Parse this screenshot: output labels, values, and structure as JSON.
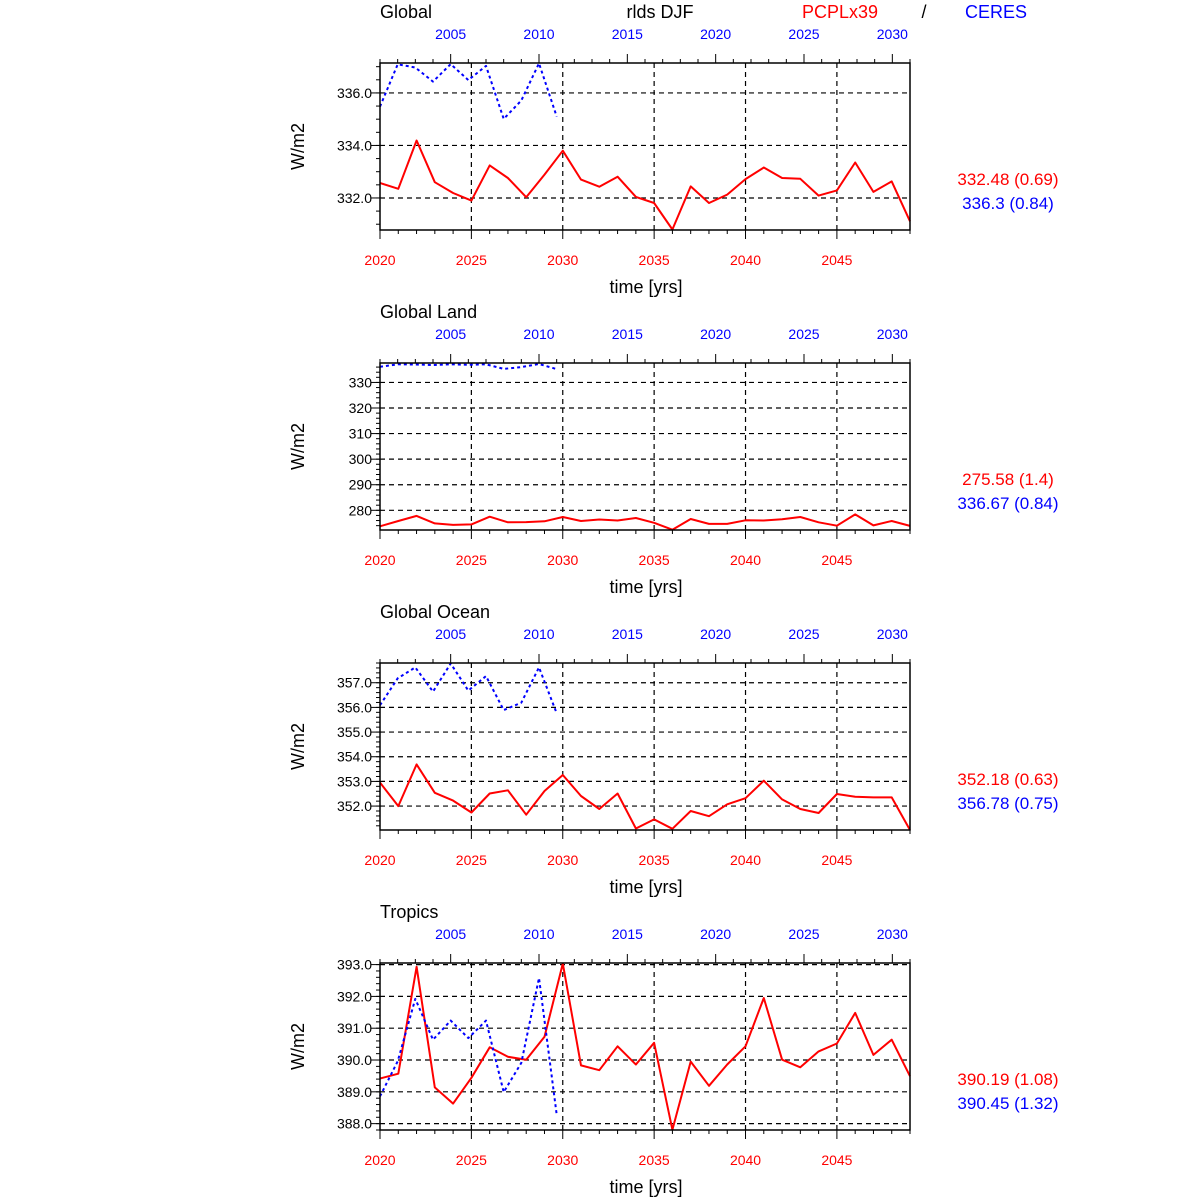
{
  "header": {
    "variable": "rlds DJF",
    "model_label": "PCPLx39",
    "separator": "/",
    "obs_label": "CERES",
    "model_color": "#ff0000",
    "obs_color": "#0000ff"
  },
  "chart_data": [
    {
      "type": "line",
      "title": "Global",
      "xlabel": "time [yrs]",
      "ylabel": "W/m2",
      "xlim_bottom": [
        2020,
        2049
      ],
      "xlim_top": [
        2001,
        2031
      ],
      "xticks_bottom": [
        2020,
        2025,
        2030,
        2035,
        2040,
        2045
      ],
      "xticks_top": [
        2005,
        2010,
        2015,
        2020,
        2025,
        2030
      ],
      "ylim": [
        330.78,
        337.14
      ],
      "yticks": [
        332,
        334,
        336
      ],
      "ytick_labels": [
        "332.0",
        "334.0",
        "336.0"
      ],
      "yminor_step": 0.5,
      "grid": true,
      "series": [
        {
          "name": "PCPLx39",
          "x_start": 2020,
          "color": "#ff0000",
          "style": "solid",
          "values": [
            332.57,
            332.35,
            334.19,
            332.6,
            332.19,
            331.9,
            333.24,
            332.76,
            332.03,
            332.89,
            333.8,
            332.7,
            332.43,
            332.81,
            332.04,
            331.81,
            330.8,
            332.44,
            331.81,
            332.13,
            332.72,
            333.16,
            332.76,
            332.73,
            332.09,
            332.29,
            333.35,
            332.23,
            332.63,
            331.11
          ]
        },
        {
          "name": "CERES",
          "x_start": 2001,
          "color": "#0000ff",
          "style": "dashed",
          "values": [
            335.48,
            337.09,
            336.97,
            336.43,
            337.1,
            336.49,
            337.03,
            335.01,
            335.71,
            337.13,
            335.1
          ]
        }
      ],
      "stats": [
        "332.48 (0.69)",
        "336.3 (0.84)"
      ]
    },
    {
      "type": "line",
      "title": "Global Land",
      "xlabel": "time [yrs]",
      "ylabel": "W/m2",
      "xlim_bottom": [
        2020,
        2049
      ],
      "xlim_top": [
        2001,
        2031
      ],
      "xticks_bottom": [
        2020,
        2025,
        2030,
        2035,
        2040,
        2045
      ],
      "xticks_top": [
        2005,
        2010,
        2015,
        2020,
        2025,
        2030
      ],
      "ylim": [
        272.3,
        337.6
      ],
      "yticks": [
        280,
        290,
        300,
        310,
        320,
        330
      ],
      "ytick_labels": [
        "280",
        "290",
        "300",
        "310",
        "320",
        "330"
      ],
      "yminor_step": 2,
      "grid": true,
      "series": [
        {
          "name": "PCPLx39",
          "x_start": 2020,
          "color": "#ff0000",
          "style": "solid",
          "values": [
            273.75,
            275.8,
            277.8,
            274.9,
            274.3,
            274.5,
            277.5,
            275.3,
            275.4,
            275.7,
            277.4,
            275.8,
            276.4,
            276.0,
            277.0,
            275.1,
            272.4,
            276.6,
            274.7,
            274.7,
            276.1,
            276.0,
            276.5,
            277.4,
            275.3,
            274.0,
            278.4,
            274.1,
            275.8,
            273.9
          ]
        },
        {
          "name": "CERES",
          "x_start": 2001,
          "color": "#0000ff",
          "style": "dashed",
          "values": [
            336.1,
            337.1,
            337.0,
            336.8,
            337.1,
            336.9,
            337.1,
            335.3,
            336.0,
            337.2,
            335.2
          ]
        }
      ],
      "stats": [
        "275.58 (1.4)",
        "336.67 (0.84)"
      ]
    },
    {
      "type": "line",
      "title": "Global Ocean",
      "xlabel": "time [yrs]",
      "ylabel": "W/m2",
      "xlim_bottom": [
        2020,
        2049
      ],
      "xlim_top": [
        2001,
        2031
      ],
      "xticks_bottom": [
        2020,
        2025,
        2030,
        2035,
        2040,
        2045
      ],
      "xticks_top": [
        2005,
        2010,
        2015,
        2020,
        2025,
        2030
      ],
      "ylim": [
        351.03,
        357.8
      ],
      "yticks": [
        352,
        353,
        354,
        355,
        356,
        357
      ],
      "ytick_labels": [
        "352.0",
        "353.0",
        "354.0",
        "355.0",
        "356.0",
        "357.0"
      ],
      "yminor_step": 0.2,
      "grid": true,
      "series": [
        {
          "name": "PCPLx39",
          "x_start": 2020,
          "color": "#ff0000",
          "style": "solid",
          "values": [
            352.95,
            352.0,
            353.69,
            352.54,
            352.22,
            351.74,
            352.51,
            352.64,
            351.65,
            352.61,
            353.26,
            352.41,
            351.88,
            352.51,
            351.09,
            351.46,
            351.08,
            351.8,
            351.59,
            352.07,
            352.32,
            353.03,
            352.27,
            351.88,
            351.72,
            352.49,
            352.38,
            352.35,
            352.35,
            351.03
          ]
        },
        {
          "name": "CERES",
          "x_start": 2001,
          "color": "#0000ff",
          "style": "dashed",
          "values": [
            356.09,
            357.18,
            357.62,
            356.64,
            357.78,
            356.68,
            357.27,
            355.89,
            356.19,
            357.62,
            355.76
          ]
        }
      ],
      "stats": [
        "352.18 (0.63)",
        "356.78 (0.75)"
      ]
    },
    {
      "type": "line",
      "title": "Tropics",
      "xlabel": "time [yrs]",
      "ylabel": "W/m2",
      "xlim_bottom": [
        2020,
        2049
      ],
      "xlim_top": [
        2001,
        2031
      ],
      "xticks_bottom": [
        2020,
        2025,
        2030,
        2035,
        2040,
        2045
      ],
      "xticks_top": [
        2005,
        2010,
        2015,
        2020,
        2025,
        2030
      ],
      "ylim": [
        387.8,
        393.05
      ],
      "yticks": [
        388,
        389,
        390,
        391,
        392,
        393
      ],
      "ytick_labels": [
        "388.0",
        "389.0",
        "390.0",
        "391.0",
        "392.0",
        "393.0"
      ],
      "yminor_step": 0.2,
      "grid": true,
      "series": [
        {
          "name": "PCPLx39",
          "x_start": 2020,
          "color": "#ff0000",
          "style": "solid",
          "values": [
            389.42,
            389.57,
            392.93,
            389.14,
            388.63,
            389.44,
            390.4,
            390.1,
            390.01,
            390.73,
            393.03,
            389.83,
            389.68,
            390.43,
            389.86,
            390.54,
            387.81,
            389.95,
            389.19,
            389.86,
            390.43,
            391.95,
            390.01,
            389.77,
            390.27,
            390.52,
            391.48,
            390.16,
            390.64,
            389.49
          ]
        },
        {
          "name": "CERES",
          "x_start": 2001,
          "color": "#0000ff",
          "style": "dashed",
          "values": [
            388.86,
            389.96,
            391.92,
            390.64,
            391.24,
            390.69,
            391.24,
            388.99,
            389.91,
            392.58,
            388.28
          ]
        }
      ],
      "stats": [
        "390.19 (1.08)",
        "390.45 (1.32)"
      ]
    }
  ]
}
